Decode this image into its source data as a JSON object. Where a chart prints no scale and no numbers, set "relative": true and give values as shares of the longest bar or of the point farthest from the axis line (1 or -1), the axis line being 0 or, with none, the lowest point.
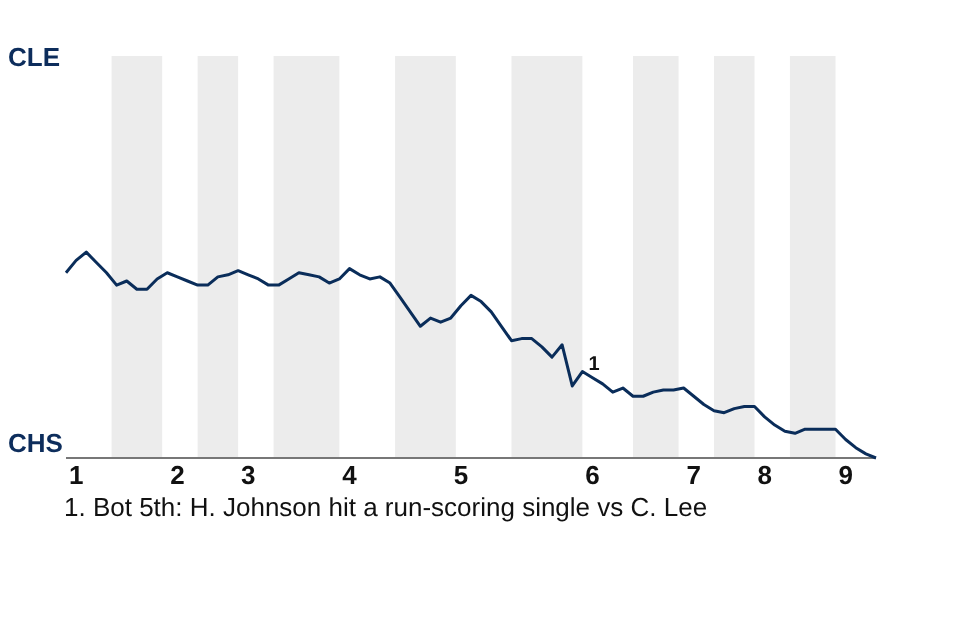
{
  "chart_data": {
    "type": "line",
    "relative": true,
    "categories": [
      null,
      "1",
      null,
      null,
      null,
      null,
      null,
      null,
      null,
      null,
      null,
      "2",
      null,
      null,
      null,
      null,
      null,
      null,
      "3",
      null,
      null,
      null,
      null,
      null,
      null,
      null,
      null,
      null,
      "4",
      null,
      null,
      null,
      null,
      null,
      null,
      null,
      null,
      null,
      null,
      "5",
      null,
      null,
      null,
      null,
      null,
      null,
      null,
      null,
      null,
      null,
      null,
      null,
      "6",
      null,
      null,
      null,
      null,
      null,
      null,
      null,
      null,
      null,
      "7",
      null,
      null,
      null,
      null,
      null,
      null,
      "8",
      null,
      null,
      null,
      null,
      null,
      null,
      null,
      "9",
      null,
      null,
      null
    ],
    "marker": "none",
    "line_style": "solid",
    "series": [
      {
        "color": "#0a2d5a",
        "values": [
          0.9,
          0.96,
          1,
          0.95,
          0.9,
          0.84,
          0.86,
          0.82,
          0.82,
          0.87,
          0.9,
          0.88,
          0.86,
          0.84,
          0.84,
          0.88,
          0.89,
          0.91,
          0.89,
          0.87,
          0.84,
          0.84,
          0.87,
          0.9,
          0.89,
          0.88,
          0.85,
          0.87,
          0.92,
          0.89,
          0.87,
          0.88,
          0.85,
          0.78,
          0.71,
          0.64,
          0.68,
          0.66,
          0.68,
          0.74,
          0.79,
          0.76,
          0.71,
          0.64,
          0.57,
          0.58,
          0.58,
          0.54,
          0.49,
          0.55,
          0.35,
          0.42,
          0.39,
          0.36,
          0.32,
          0.34,
          0.3,
          0.3,
          0.32,
          0.33,
          0.33,
          0.34,
          0.3,
          0.26,
          0.23,
          0.22,
          0.24,
          0.25,
          0.25,
          0.2,
          0.16,
          0.13,
          0.12,
          0.14,
          0.14,
          0.14,
          0.14,
          0.09,
          0.05,
          0.02,
          0
        ]
      }
    ],
    "annotations": [
      "CLE",
      "CHS",
      {
        "text": "1",
        "y": 0.42
      },
      "1. Bot 5th: H. Johnson hit a run-scoring single vs C. Lee"
    ]
  }
}
